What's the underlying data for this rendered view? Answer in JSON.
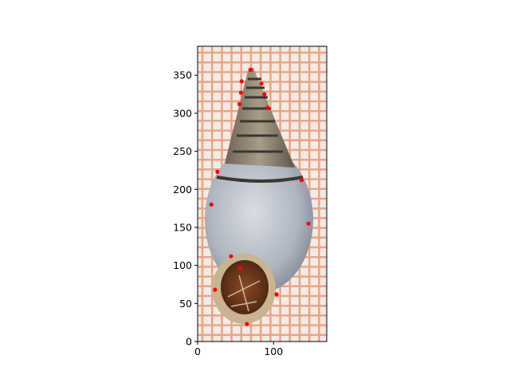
{
  "chart_data": {
    "type": "scatter",
    "title": "",
    "xlabel": "",
    "ylabel": "",
    "background": "photograph of a snail shell on grid paper",
    "xlim": [
      0,
      170
    ],
    "ylim": [
      0,
      388
    ],
    "x_ticks": [
      0,
      100
    ],
    "x_tick_labels": [
      "0",
      "100"
    ],
    "y_ticks": [
      0,
      50,
      100,
      150,
      200,
      250,
      300,
      350
    ],
    "y_tick_labels": [
      "0",
      "50",
      "100",
      "150",
      "200",
      "250",
      "300",
      "350"
    ],
    "grid": false,
    "marker_color": "#ff0000",
    "series": [
      {
        "points": [
          {
            "x": 70,
            "y": 357
          },
          {
            "x": 58,
            "y": 342
          },
          {
            "x": 84,
            "y": 339
          },
          {
            "x": 57,
            "y": 327
          },
          {
            "x": 88,
            "y": 325
          },
          {
            "x": 55,
            "y": 312
          },
          {
            "x": 92,
            "y": 307
          },
          {
            "x": 26,
            "y": 223
          },
          {
            "x": 137,
            "y": 212
          },
          {
            "x": 18,
            "y": 180
          },
          {
            "x": 146,
            "y": 155
          },
          {
            "x": 44,
            "y": 112
          },
          {
            "x": 56,
            "y": 97
          },
          {
            "x": 23,
            "y": 68
          },
          {
            "x": 104,
            "y": 62
          },
          {
            "x": 65,
            "y": 23
          }
        ]
      }
    ]
  }
}
